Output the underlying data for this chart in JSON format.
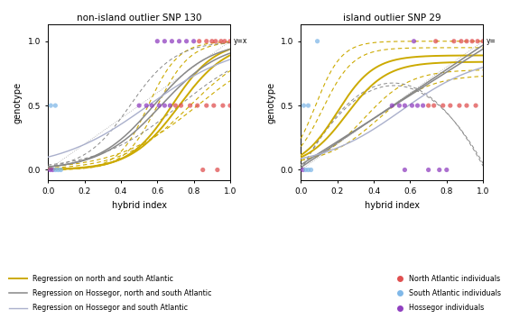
{
  "title_left": "non-island outlier SNP 130",
  "title_right": "island outlier SNP 29",
  "xlabel": "hybrid index",
  "ylabel": "genotype",
  "xlim": [
    0.0,
    1.0
  ],
  "xticks": [
    0.0,
    0.2,
    0.4,
    0.6,
    0.8,
    1.0
  ],
  "yticks": [
    0.0,
    0.5,
    1.0
  ],
  "color_north": "#e05050",
  "color_south": "#80b8e8",
  "color_hossegor": "#9040c0",
  "color_yellow": "#ccaa00",
  "color_gray_dark": "#888888",
  "color_gray_light": "#aab0cc",
  "legend_lines": [
    {
      "label": "Regression on north and south Atlantic",
      "color": "#ccaa00"
    },
    {
      "label": "Regression on Hossegor, north and south Atlantic",
      "color": "#888888"
    },
    {
      "label": "Regression on Hossegor and south Atlantic",
      "color": "#aab0cc"
    }
  ],
  "legend_markers": [
    {
      "label": "North Atlantic individuals",
      "color": "#e05050"
    },
    {
      "label": "South Atlantic individuals",
      "color": "#80b8e8"
    },
    {
      "label": "Hossegor individuals",
      "color": "#9040c0"
    }
  ],
  "snp130_points": {
    "y0_x": [
      0.01,
      0.025,
      0.04,
      0.055,
      0.07,
      0.85,
      0.93
    ],
    "y0_c": [
      "#9040c0",
      "#9040c0",
      "#80b8e8",
      "#80b8e8",
      "#80b8e8",
      "#e05050",
      "#e05050"
    ],
    "y05_x": [
      0.015,
      0.04,
      0.5,
      0.54,
      0.57,
      0.61,
      0.64,
      0.67,
      0.7,
      0.73,
      0.78,
      0.82,
      0.87,
      0.91,
      0.96,
      1.0
    ],
    "y05_c": [
      "#80b8e8",
      "#80b8e8",
      "#9040c0",
      "#9040c0",
      "#9040c0",
      "#9040c0",
      "#9040c0",
      "#9040c0",
      "#e05050",
      "#e05050",
      "#e05050",
      "#e05050",
      "#e05050",
      "#e05050",
      "#e05050",
      "#e05050"
    ],
    "y1_x": [
      0.6,
      0.64,
      0.68,
      0.72,
      0.76,
      0.8,
      0.83,
      0.87,
      0.9,
      0.92,
      0.95,
      0.97,
      1.0
    ],
    "y1_c": [
      "#9040c0",
      "#9040c0",
      "#9040c0",
      "#9040c0",
      "#9040c0",
      "#9040c0",
      "#e05050",
      "#e05050",
      "#e05050",
      "#e05050",
      "#e05050",
      "#e05050",
      "#e05050"
    ]
  },
  "snp29_points": {
    "y0_x": [
      0.01,
      0.025,
      0.04,
      0.055,
      0.57,
      0.7,
      0.76,
      0.8
    ],
    "y0_c": [
      "#9040c0",
      "#80b8e8",
      "#80b8e8",
      "#80b8e8",
      "#9040c0",
      "#9040c0",
      "#9040c0",
      "#9040c0"
    ],
    "y05_x": [
      0.015,
      0.04,
      0.5,
      0.54,
      0.57,
      0.61,
      0.64,
      0.67,
      0.7,
      0.73,
      0.78,
      0.82,
      0.87,
      0.91,
      0.96
    ],
    "y05_c": [
      "#80b8e8",
      "#80b8e8",
      "#9040c0",
      "#9040c0",
      "#9040c0",
      "#9040c0",
      "#9040c0",
      "#9040c0",
      "#e05050",
      "#e05050",
      "#e05050",
      "#e05050",
      "#e05050",
      "#e05050",
      "#e05050"
    ],
    "y1_x": [
      0.09,
      0.62,
      0.74,
      0.84,
      0.88,
      0.91,
      0.94,
      0.97,
      1.0
    ],
    "y1_c": [
      "#80b8e8",
      "#9040c0",
      "#e05050",
      "#e05050",
      "#e05050",
      "#e05050",
      "#e05050",
      "#e05050",
      "#e05050"
    ]
  }
}
